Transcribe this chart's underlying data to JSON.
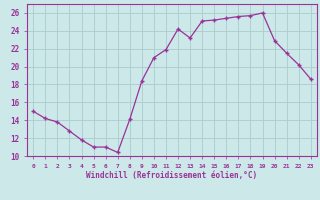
{
  "x": [
    0,
    1,
    2,
    3,
    4,
    5,
    6,
    7,
    8,
    9,
    10,
    11,
    12,
    13,
    14,
    15,
    16,
    17,
    18,
    19,
    20,
    21,
    22,
    23
  ],
  "y": [
    15.0,
    14.2,
    13.8,
    12.8,
    11.8,
    11.0,
    11.0,
    10.4,
    14.1,
    18.4,
    21.0,
    21.9,
    24.2,
    23.2,
    25.1,
    25.2,
    25.4,
    25.6,
    25.7,
    26.0,
    22.9,
    21.5,
    20.2,
    18.6
  ],
  "xlabel": "Windchill (Refroidissement éolien,°C)",
  "ylim": [
    10,
    27
  ],
  "xlim": [
    -0.5,
    23.5
  ],
  "yticks": [
    10,
    12,
    14,
    16,
    18,
    20,
    22,
    24,
    26
  ],
  "xtick_labels": [
    "0",
    "1",
    "2",
    "3",
    "4",
    "5",
    "6",
    "7",
    "8",
    "9",
    "10",
    "11",
    "12",
    "13",
    "14",
    "15",
    "16",
    "17",
    "18",
    "19",
    "20",
    "21",
    "22",
    "23"
  ],
  "line_color": "#993399",
  "marker_color": "#993399",
  "bg_color": "#cce8e8",
  "grid_color": "#aacccc",
  "axis_color": "#993399",
  "label_color": "#993399"
}
